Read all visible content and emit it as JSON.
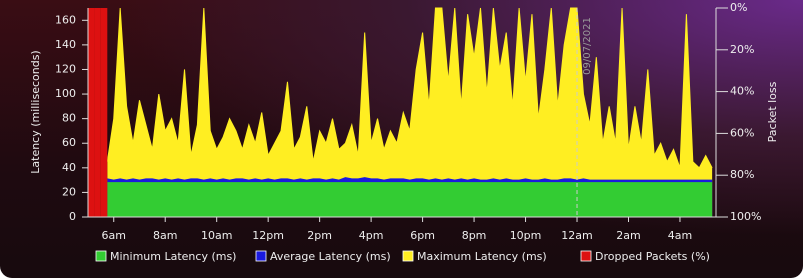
{
  "chart_data": {
    "type": "area",
    "ylabel": "Latency (milliseconds)",
    "y2label": "Packet loss",
    "x": [
      5.0,
      5.25,
      5.5,
      5.75,
      6.0,
      6.25,
      6.5,
      6.75,
      7.0,
      7.25,
      7.5,
      7.75,
      8.0,
      8.25,
      8.5,
      8.75,
      9.0,
      9.25,
      9.5,
      9.75,
      10.0,
      10.25,
      10.5,
      10.75,
      11.0,
      11.25,
      11.5,
      11.75,
      12.0,
      12.25,
      12.5,
      12.75,
      13.0,
      13.25,
      13.5,
      13.75,
      14.0,
      14.25,
      14.5,
      14.75,
      15.0,
      15.25,
      15.5,
      15.75,
      16.0,
      16.25,
      16.5,
      16.75,
      17.0,
      17.25,
      17.5,
      17.75,
      18.0,
      18.25,
      18.5,
      18.75,
      19.0,
      19.25,
      19.5,
      19.75,
      20.0,
      20.25,
      20.5,
      20.75,
      21.0,
      21.25,
      21.5,
      21.75,
      22.0,
      22.25,
      22.5,
      22.75,
      23.0,
      23.25,
      23.5,
      23.75,
      24.0,
      24.25,
      24.5,
      24.75,
      25.0,
      25.25,
      25.5,
      25.75,
      26.0,
      26.25,
      26.5,
      26.75,
      27.0,
      27.25,
      27.5,
      27.75,
      28.0,
      28.25,
      28.5,
      28.75,
      29.0,
      29.25
    ],
    "series": [
      {
        "name": "Maximum Latency (ms)",
        "color": "#ffee22",
        "values": [
          null,
          null,
          null,
          45,
          80,
          170,
          90,
          60,
          95,
          75,
          55,
          100,
          70,
          80,
          60,
          120,
          50,
          75,
          170,
          70,
          55,
          65,
          80,
          70,
          55,
          75,
          60,
          85,
          50,
          60,
          70,
          110,
          55,
          65,
          90,
          45,
          70,
          60,
          80,
          55,
          60,
          75,
          50,
          150,
          60,
          80,
          55,
          70,
          60,
          85,
          70,
          120,
          150,
          90,
          170,
          170,
          110,
          170,
          90,
          165,
          130,
          170,
          100,
          170,
          120,
          150,
          90,
          170,
          110,
          165,
          80,
          120,
          170,
          90,
          140,
          170,
          170,
          100,
          75,
          130,
          60,
          90,
          60,
          170,
          55,
          90,
          60,
          120,
          50,
          60,
          45,
          55,
          40,
          165,
          45,
          40,
          50,
          40
        ]
      },
      {
        "name": "Average Latency (ms)",
        "color": "#1a1adf",
        "values": [
          null,
          null,
          null,
          31,
          30,
          31,
          30,
          31,
          30,
          31,
          31,
          30,
          31,
          30,
          31,
          30,
          31,
          31,
          30,
          31,
          30,
          31,
          30,
          31,
          31,
          30,
          31,
          30,
          31,
          30,
          31,
          31,
          30,
          31,
          30,
          31,
          31,
          30,
          31,
          30,
          32,
          31,
          31,
          32,
          31,
          31,
          30,
          31,
          31,
          31,
          30,
          31,
          31,
          30,
          31,
          30,
          31,
          30,
          31,
          30,
          31,
          30,
          30,
          31,
          30,
          31,
          30,
          30,
          31,
          30,
          30,
          31,
          30,
          30,
          31,
          31,
          30,
          31,
          30,
          30,
          30,
          30,
          30,
          30,
          30,
          30,
          30,
          30,
          30,
          30,
          30,
          30,
          30,
          30,
          30,
          30,
          30,
          30
        ]
      },
      {
        "name": "Minimum Latency (ms)",
        "color": "#33cc33",
        "values": [
          null,
          null,
          null,
          28,
          28,
          28,
          28,
          28,
          28,
          28,
          28,
          28,
          28,
          28,
          28,
          28,
          28,
          28,
          28,
          28,
          28,
          28,
          28,
          28,
          28,
          28,
          28,
          28,
          28,
          28,
          28,
          28,
          28,
          28,
          28,
          28,
          28,
          28,
          28,
          28,
          28,
          28,
          28,
          28,
          28,
          28,
          28,
          28,
          28,
          28,
          28,
          28,
          28,
          28,
          28,
          28,
          28,
          28,
          28,
          28,
          28,
          28,
          28,
          28,
          28,
          28,
          28,
          28,
          28,
          28,
          28,
          28,
          28,
          28,
          28,
          28,
          28,
          28,
          28,
          28,
          28,
          28,
          28,
          28,
          28,
          28,
          28,
          28,
          28,
          28,
          28,
          28,
          28,
          28,
          28,
          28,
          28,
          28
        ]
      },
      {
        "name": "Dropped Packets (%)",
        "color": "#dd1111",
        "axis": "y2",
        "values": [
          100,
          100,
          100,
          0,
          0,
          0,
          0,
          0,
          0,
          0,
          0,
          0,
          0,
          0,
          0,
          0,
          0,
          0,
          0,
          0,
          0,
          0,
          0,
          0,
          0,
          0,
          0,
          0,
          0,
          0,
          0,
          0,
          0,
          0,
          0,
          0,
          0,
          0,
          0,
          0,
          0,
          0,
          0,
          0,
          0,
          0,
          0,
          0,
          0,
          0,
          0,
          0,
          0,
          0,
          0,
          0,
          0,
          0,
          0,
          0,
          0,
          0,
          0,
          0,
          0,
          0,
          0,
          0,
          0,
          0,
          0,
          0,
          0,
          0,
          0,
          0,
          0,
          0,
          0,
          0,
          0,
          0,
          0,
          0,
          0,
          0,
          0,
          0,
          0,
          0,
          0,
          0,
          0,
          0,
          0,
          0,
          0,
          0
        ]
      }
    ],
    "legend_order": [
      2,
      1,
      0,
      3
    ],
    "xlim": [
      5,
      29.4
    ],
    "xticks": [
      {
        "value": 6,
        "label": "6am"
      },
      {
        "value": 8,
        "label": "8am"
      },
      {
        "value": 10,
        "label": "10am"
      },
      {
        "value": 12,
        "label": "12pm"
      },
      {
        "value": 14,
        "label": "2pm"
      },
      {
        "value": 16,
        "label": "4pm"
      },
      {
        "value": 18,
        "label": "6pm"
      },
      {
        "value": 20,
        "label": "8pm"
      },
      {
        "value": 22,
        "label": "10pm"
      },
      {
        "value": 24,
        "label": "12am"
      },
      {
        "value": 26,
        "label": "2am"
      },
      {
        "value": 28,
        "label": "4am"
      }
    ],
    "ylim": [
      0,
      170
    ],
    "yticks": [
      0,
      20,
      40,
      60,
      80,
      100,
      120,
      140,
      160
    ],
    "y2lim": [
      100,
      0
    ],
    "y2ticks": [
      {
        "value": 0,
        "label": "0%"
      },
      {
        "value": 20,
        "label": "20%"
      },
      {
        "value": 40,
        "label": "40%"
      },
      {
        "value": 60,
        "label": "60%"
      },
      {
        "value": 80,
        "label": "80%"
      },
      {
        "value": 100,
        "label": "100%"
      }
    ],
    "annotation": {
      "x": 24,
      "text": "09/07/2021"
    }
  }
}
